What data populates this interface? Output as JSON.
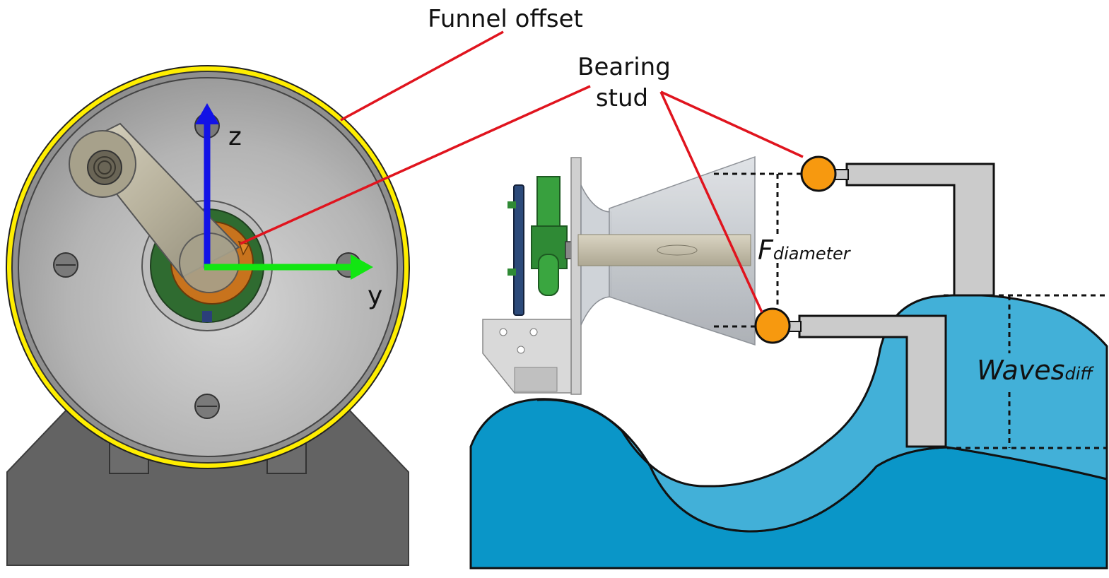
{
  "labels": {
    "funnel_offset": "Funnel offset",
    "bearing_line1": "Bearing",
    "bearing_line2": "stud",
    "axis_z": "z",
    "axis_y": "y",
    "fdiam_main": "F",
    "fdiam_sub": "diameter",
    "waves_main": "Waves",
    "waves_sub": "diff"
  },
  "colors": {
    "leader_line": "#e0141e",
    "funnel_offset_ring": "#ffee00",
    "axis_z": "#1212e6",
    "axis_y": "#12e612",
    "bearing_ball": "#f7990f",
    "wave_dark": "#0a96c8",
    "wave_light": "#42b0d8",
    "stud_arm": "#cbcbcb",
    "base_block": "#636363"
  }
}
